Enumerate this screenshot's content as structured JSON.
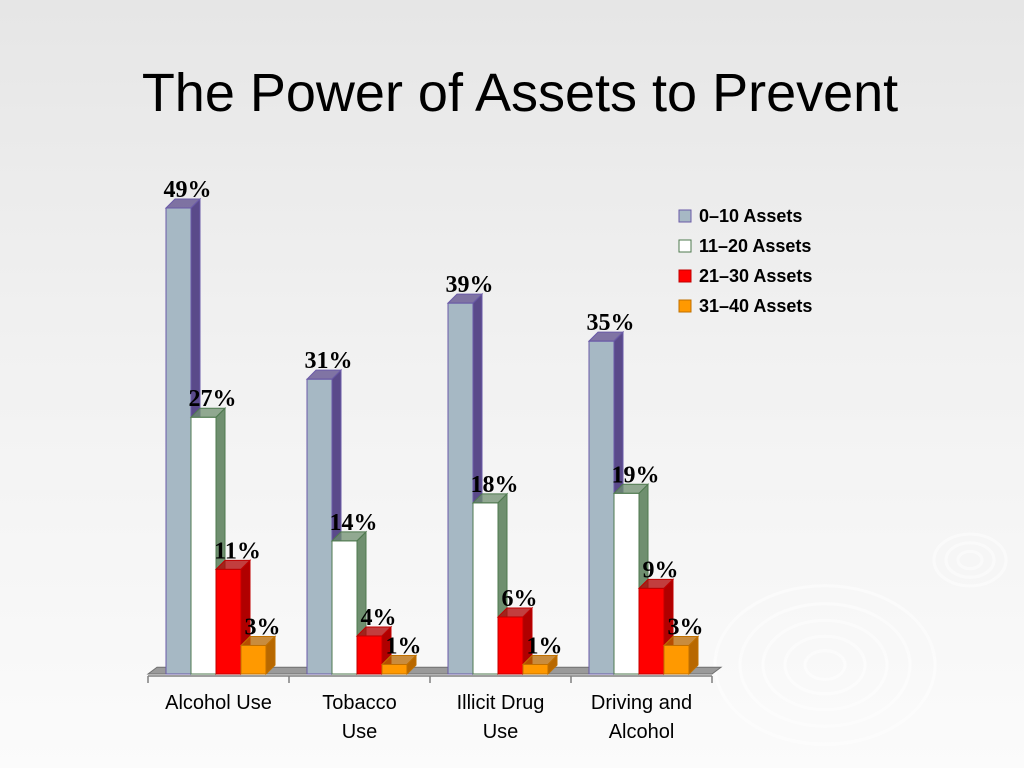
{
  "slide": {
    "title": "The Power of Assets to Prevent"
  },
  "chart_data": {
    "type": "bar",
    "categories": [
      [
        "Alcohol Use"
      ],
      [
        "Tobacco",
        "Use"
      ],
      [
        "Illicit Drug",
        "Use"
      ],
      [
        "Driving and",
        "Alcohol"
      ]
    ],
    "series": [
      {
        "name": "0–10 Assets",
        "values": [
          49,
          31,
          39,
          35
        ],
        "labels": [
          "49%",
          "31%",
          "39%",
          "35%"
        ],
        "color": "#a6b8c4",
        "side": "#5a4a8a",
        "stroke": "#6a5aa8"
      },
      {
        "name": "11–20 Assets",
        "values": [
          27,
          14,
          18,
          19
        ],
        "labels": [
          "27%",
          "14%",
          "18%",
          "19%"
        ],
        "color": "#ffffff",
        "side": "#6f8f6f",
        "stroke": "#4f7a4f"
      },
      {
        "name": "21–30 Assets",
        "values": [
          11,
          4,
          6,
          9
        ],
        "labels": [
          "11%",
          "4%",
          "6%",
          "9%"
        ],
        "color": "#ff0000",
        "side": "#b00000",
        "stroke": "#c00000"
      },
      {
        "name": "31–40 Assets",
        "values": [
          3,
          1,
          1,
          3
        ],
        "labels": [
          "3%",
          "1%",
          "1%",
          "3%"
        ],
        "color": "#ff9900",
        "side": "#b86800",
        "stroke": "#c07000"
      }
    ],
    "ylim": [
      0,
      49
    ],
    "grid": false,
    "legend": "top-right",
    "three_d": true
  }
}
